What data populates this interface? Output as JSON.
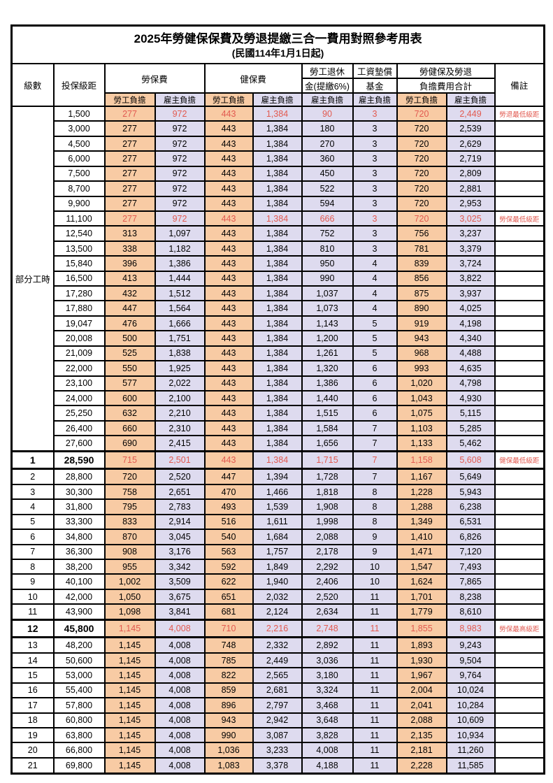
{
  "title": "2025年勞健保保費及勞退提繳三合一費用對照參考用表",
  "subtitle": "(民國114年1月1日起)",
  "colors": {
    "worker_bg": "#F8CBA4",
    "employer_bg": "#DEDBEF",
    "highlight_text": "#E25A50"
  },
  "columns": {
    "level": "級數",
    "bracket": "投保級距",
    "labor_insurance": "勞保費",
    "health_insurance": "健保費",
    "pension_line1": "勞工退休",
    "pension_line2": "金(提繳6%)",
    "wage_fund_line1": "工資墊償",
    "wage_fund_line2": "基金",
    "total_line1": "勞健保及勞退",
    "total_line2": "負擔費用合計",
    "remark": "備註",
    "worker": "勞工負擔",
    "employer": "雇主負擔"
  },
  "part_time_label": "部分工時",
  "part_time_rowspan": 23,
  "rows": [
    {
      "level": "",
      "bracket": "1,500",
      "li_w": "277",
      "li_e": "972",
      "hi_w": "443",
      "hi_e": "1,384",
      "pension": "90",
      "wage": "3",
      "tot_w": "720",
      "tot_e": "2,449",
      "remark": "勞退最低級距",
      "highlight": true,
      "thick": false,
      "em": false
    },
    {
      "level": "",
      "bracket": "3,000",
      "li_w": "277",
      "li_e": "972",
      "hi_w": "443",
      "hi_e": "1,384",
      "pension": "180",
      "wage": "3",
      "tot_w": "720",
      "tot_e": "2,539",
      "remark": "",
      "highlight": false,
      "thick": false,
      "em": false
    },
    {
      "level": "",
      "bracket": "4,500",
      "li_w": "277",
      "li_e": "972",
      "hi_w": "443",
      "hi_e": "1,384",
      "pension": "270",
      "wage": "3",
      "tot_w": "720",
      "tot_e": "2,629",
      "remark": "",
      "highlight": false,
      "thick": false,
      "em": false
    },
    {
      "level": "",
      "bracket": "6,000",
      "li_w": "277",
      "li_e": "972",
      "hi_w": "443",
      "hi_e": "1,384",
      "pension": "360",
      "wage": "3",
      "tot_w": "720",
      "tot_e": "2,719",
      "remark": "",
      "highlight": false,
      "thick": false,
      "em": false
    },
    {
      "level": "",
      "bracket": "7,500",
      "li_w": "277",
      "li_e": "972",
      "hi_w": "443",
      "hi_e": "1,384",
      "pension": "450",
      "wage": "3",
      "tot_w": "720",
      "tot_e": "2,809",
      "remark": "",
      "highlight": false,
      "thick": false,
      "em": false
    },
    {
      "level": "",
      "bracket": "8,700",
      "li_w": "277",
      "li_e": "972",
      "hi_w": "443",
      "hi_e": "1,384",
      "pension": "522",
      "wage": "3",
      "tot_w": "720",
      "tot_e": "2,881",
      "remark": "",
      "highlight": false,
      "thick": false,
      "em": false
    },
    {
      "level": "",
      "bracket": "9,900",
      "li_w": "277",
      "li_e": "972",
      "hi_w": "443",
      "hi_e": "1,384",
      "pension": "594",
      "wage": "3",
      "tot_w": "720",
      "tot_e": "2,953",
      "remark": "",
      "highlight": false,
      "thick": false,
      "em": false
    },
    {
      "level": "",
      "bracket": "11,100",
      "li_w": "277",
      "li_e": "972",
      "hi_w": "443",
      "hi_e": "1,384",
      "pension": "666",
      "wage": "3",
      "tot_w": "720",
      "tot_e": "3,025",
      "remark": "勞保最低級距",
      "highlight": true,
      "thick": false,
      "em": false
    },
    {
      "level": "",
      "bracket": "12,540",
      "li_w": "313",
      "li_e": "1,097",
      "hi_w": "443",
      "hi_e": "1,384",
      "pension": "752",
      "wage": "3",
      "tot_w": "756",
      "tot_e": "3,237",
      "remark": "",
      "highlight": false,
      "thick": false,
      "em": false
    },
    {
      "level": "",
      "bracket": "13,500",
      "li_w": "338",
      "li_e": "1,182",
      "hi_w": "443",
      "hi_e": "1,384",
      "pension": "810",
      "wage": "3",
      "tot_w": "781",
      "tot_e": "3,379",
      "remark": "",
      "highlight": false,
      "thick": false,
      "em": false
    },
    {
      "level": "",
      "bracket": "15,840",
      "li_w": "396",
      "li_e": "1,386",
      "hi_w": "443",
      "hi_e": "1,384",
      "pension": "950",
      "wage": "4",
      "tot_w": "839",
      "tot_e": "3,724",
      "remark": "",
      "highlight": false,
      "thick": false,
      "em": false
    },
    {
      "level": "",
      "bracket": "16,500",
      "li_w": "413",
      "li_e": "1,444",
      "hi_w": "443",
      "hi_e": "1,384",
      "pension": "990",
      "wage": "4",
      "tot_w": "856",
      "tot_e": "3,822",
      "remark": "",
      "highlight": false,
      "thick": false,
      "em": false
    },
    {
      "level": "",
      "bracket": "17,280",
      "li_w": "432",
      "li_e": "1,512",
      "hi_w": "443",
      "hi_e": "1,384",
      "pension": "1,037",
      "wage": "4",
      "tot_w": "875",
      "tot_e": "3,937",
      "remark": "",
      "highlight": false,
      "thick": false,
      "em": false
    },
    {
      "level": "",
      "bracket": "17,880",
      "li_w": "447",
      "li_e": "1,564",
      "hi_w": "443",
      "hi_e": "1,384",
      "pension": "1,073",
      "wage": "4",
      "tot_w": "890",
      "tot_e": "4,025",
      "remark": "",
      "highlight": false,
      "thick": false,
      "em": false
    },
    {
      "level": "",
      "bracket": "19,047",
      "li_w": "476",
      "li_e": "1,666",
      "hi_w": "443",
      "hi_e": "1,384",
      "pension": "1,143",
      "wage": "5",
      "tot_w": "919",
      "tot_e": "4,198",
      "remark": "",
      "highlight": false,
      "thick": false,
      "em": false
    },
    {
      "level": "",
      "bracket": "20,008",
      "li_w": "500",
      "li_e": "1,751",
      "hi_w": "443",
      "hi_e": "1,384",
      "pension": "1,200",
      "wage": "5",
      "tot_w": "943",
      "tot_e": "4,340",
      "remark": "",
      "highlight": false,
      "thick": false,
      "em": false
    },
    {
      "level": "",
      "bracket": "21,009",
      "li_w": "525",
      "li_e": "1,838",
      "hi_w": "443",
      "hi_e": "1,384",
      "pension": "1,261",
      "wage": "5",
      "tot_w": "968",
      "tot_e": "4,488",
      "remark": "",
      "highlight": false,
      "thick": false,
      "em": false
    },
    {
      "level": "",
      "bracket": "22,000",
      "li_w": "550",
      "li_e": "1,925",
      "hi_w": "443",
      "hi_e": "1,384",
      "pension": "1,320",
      "wage": "6",
      "tot_w": "993",
      "tot_e": "4,635",
      "remark": "",
      "highlight": false,
      "thick": false,
      "em": false
    },
    {
      "level": "",
      "bracket": "23,100",
      "li_w": "577",
      "li_e": "2,022",
      "hi_w": "443",
      "hi_e": "1,384",
      "pension": "1,386",
      "wage": "6",
      "tot_w": "1,020",
      "tot_e": "4,798",
      "remark": "",
      "highlight": false,
      "thick": false,
      "em": false
    },
    {
      "level": "",
      "bracket": "24,000",
      "li_w": "600",
      "li_e": "2,100",
      "hi_w": "443",
      "hi_e": "1,384",
      "pension": "1,440",
      "wage": "6",
      "tot_w": "1,043",
      "tot_e": "4,930",
      "remark": "",
      "highlight": false,
      "thick": false,
      "em": false
    },
    {
      "level": "",
      "bracket": "25,250",
      "li_w": "632",
      "li_e": "2,210",
      "hi_w": "443",
      "hi_e": "1,384",
      "pension": "1,515",
      "wage": "6",
      "tot_w": "1,075",
      "tot_e": "5,115",
      "remark": "",
      "highlight": false,
      "thick": false,
      "em": false
    },
    {
      "level": "",
      "bracket": "26,400",
      "li_w": "660",
      "li_e": "2,310",
      "hi_w": "443",
      "hi_e": "1,384",
      "pension": "1,584",
      "wage": "7",
      "tot_w": "1,103",
      "tot_e": "5,285",
      "remark": "",
      "highlight": false,
      "thick": false,
      "em": false
    },
    {
      "level": "",
      "bracket": "27,600",
      "li_w": "690",
      "li_e": "2,415",
      "hi_w": "443",
      "hi_e": "1,384",
      "pension": "1,656",
      "wage": "7",
      "tot_w": "1,133",
      "tot_e": "5,462",
      "remark": "",
      "highlight": false,
      "thick": false,
      "em": false
    },
    {
      "level": "1",
      "bracket": "28,590",
      "li_w": "715",
      "li_e": "2,501",
      "hi_w": "443",
      "hi_e": "1,384",
      "pension": "1,715",
      "wage": "7",
      "tot_w": "1,158",
      "tot_e": "5,608",
      "remark": "健保最低級距",
      "highlight": true,
      "thick": true,
      "em": true
    },
    {
      "level": "2",
      "bracket": "28,800",
      "li_w": "720",
      "li_e": "2,520",
      "hi_w": "447",
      "hi_e": "1,394",
      "pension": "1,728",
      "wage": "7",
      "tot_w": "1,167",
      "tot_e": "5,649",
      "remark": "",
      "highlight": false,
      "thick": false,
      "em": false
    },
    {
      "level": "3",
      "bracket": "30,300",
      "li_w": "758",
      "li_e": "2,651",
      "hi_w": "470",
      "hi_e": "1,466",
      "pension": "1,818",
      "wage": "8",
      "tot_w": "1,228",
      "tot_e": "5,943",
      "remark": "",
      "highlight": false,
      "thick": false,
      "em": false
    },
    {
      "level": "4",
      "bracket": "31,800",
      "li_w": "795",
      "li_e": "2,783",
      "hi_w": "493",
      "hi_e": "1,539",
      "pension": "1,908",
      "wage": "8",
      "tot_w": "1,288",
      "tot_e": "6,238",
      "remark": "",
      "highlight": false,
      "thick": false,
      "em": false
    },
    {
      "level": "5",
      "bracket": "33,300",
      "li_w": "833",
      "li_e": "2,914",
      "hi_w": "516",
      "hi_e": "1,611",
      "pension": "1,998",
      "wage": "8",
      "tot_w": "1,349",
      "tot_e": "6,531",
      "remark": "",
      "highlight": false,
      "thick": false,
      "em": false
    },
    {
      "level": "6",
      "bracket": "34,800",
      "li_w": "870",
      "li_e": "3,045",
      "hi_w": "540",
      "hi_e": "1,684",
      "pension": "2,088",
      "wage": "9",
      "tot_w": "1,410",
      "tot_e": "6,826",
      "remark": "",
      "highlight": false,
      "thick": false,
      "em": false
    },
    {
      "level": "7",
      "bracket": "36,300",
      "li_w": "908",
      "li_e": "3,176",
      "hi_w": "563",
      "hi_e": "1,757",
      "pension": "2,178",
      "wage": "9",
      "tot_w": "1,471",
      "tot_e": "7,120",
      "remark": "",
      "highlight": false,
      "thick": false,
      "em": false
    },
    {
      "level": "8",
      "bracket": "38,200",
      "li_w": "955",
      "li_e": "3,342",
      "hi_w": "592",
      "hi_e": "1,849",
      "pension": "2,292",
      "wage": "10",
      "tot_w": "1,547",
      "tot_e": "7,493",
      "remark": "",
      "highlight": false,
      "thick": false,
      "em": false
    },
    {
      "level": "9",
      "bracket": "40,100",
      "li_w": "1,002",
      "li_e": "3,509",
      "hi_w": "622",
      "hi_e": "1,940",
      "pension": "2,406",
      "wage": "10",
      "tot_w": "1,624",
      "tot_e": "7,865",
      "remark": "",
      "highlight": false,
      "thick": false,
      "em": false
    },
    {
      "level": "10",
      "bracket": "42,000",
      "li_w": "1,050",
      "li_e": "3,675",
      "hi_w": "651",
      "hi_e": "2,032",
      "pension": "2,520",
      "wage": "11",
      "tot_w": "1,701",
      "tot_e": "8,238",
      "remark": "",
      "highlight": false,
      "thick": false,
      "em": false
    },
    {
      "level": "11",
      "bracket": "43,900",
      "li_w": "1,098",
      "li_e": "3,841",
      "hi_w": "681",
      "hi_e": "2,124",
      "pension": "2,634",
      "wage": "11",
      "tot_w": "1,779",
      "tot_e": "8,610",
      "remark": "",
      "highlight": false,
      "thick": false,
      "em": false
    },
    {
      "level": "12",
      "bracket": "45,800",
      "li_w": "1,145",
      "li_e": "4,008",
      "hi_w": "710",
      "hi_e": "2,216",
      "pension": "2,748",
      "wage": "11",
      "tot_w": "1,855",
      "tot_e": "8,983",
      "remark": "勞保最高級距",
      "highlight": true,
      "thick": true,
      "em": true
    },
    {
      "level": "13",
      "bracket": "48,200",
      "li_w": "1,145",
      "li_e": "4,008",
      "hi_w": "748",
      "hi_e": "2,332",
      "pension": "2,892",
      "wage": "11",
      "tot_w": "1,893",
      "tot_e": "9,243",
      "remark": "",
      "highlight": false,
      "thick": false,
      "em": false
    },
    {
      "level": "14",
      "bracket": "50,600",
      "li_w": "1,145",
      "li_e": "4,008",
      "hi_w": "785",
      "hi_e": "2,449",
      "pension": "3,036",
      "wage": "11",
      "tot_w": "1,930",
      "tot_e": "9,504",
      "remark": "",
      "highlight": false,
      "thick": false,
      "em": false
    },
    {
      "level": "15",
      "bracket": "53,000",
      "li_w": "1,145",
      "li_e": "4,008",
      "hi_w": "822",
      "hi_e": "2,565",
      "pension": "3,180",
      "wage": "11",
      "tot_w": "1,967",
      "tot_e": "9,764",
      "remark": "",
      "highlight": false,
      "thick": false,
      "em": false
    },
    {
      "level": "16",
      "bracket": "55,400",
      "li_w": "1,145",
      "li_e": "4,008",
      "hi_w": "859",
      "hi_e": "2,681",
      "pension": "3,324",
      "wage": "11",
      "tot_w": "2,004",
      "tot_e": "10,024",
      "remark": "",
      "highlight": false,
      "thick": false,
      "em": false
    },
    {
      "level": "17",
      "bracket": "57,800",
      "li_w": "1,145",
      "li_e": "4,008",
      "hi_w": "896",
      "hi_e": "2,797",
      "pension": "3,468",
      "wage": "11",
      "tot_w": "2,041",
      "tot_e": "10,284",
      "remark": "",
      "highlight": false,
      "thick": false,
      "em": false
    },
    {
      "level": "18",
      "bracket": "60,800",
      "li_w": "1,145",
      "li_e": "4,008",
      "hi_w": "943",
      "hi_e": "2,942",
      "pension": "3,648",
      "wage": "11",
      "tot_w": "2,088",
      "tot_e": "10,609",
      "remark": "",
      "highlight": false,
      "thick": false,
      "em": false
    },
    {
      "level": "19",
      "bracket": "63,800",
      "li_w": "1,145",
      "li_e": "4,008",
      "hi_w": "990",
      "hi_e": "3,087",
      "pension": "3,828",
      "wage": "11",
      "tot_w": "2,135",
      "tot_e": "10,934",
      "remark": "",
      "highlight": false,
      "thick": false,
      "em": false
    },
    {
      "level": "20",
      "bracket": "66,800",
      "li_w": "1,145",
      "li_e": "4,008",
      "hi_w": "1,036",
      "hi_e": "3,233",
      "pension": "4,008",
      "wage": "11",
      "tot_w": "2,181",
      "tot_e": "11,260",
      "remark": "",
      "highlight": false,
      "thick": false,
      "em": false
    },
    {
      "level": "21",
      "bracket": "69,800",
      "li_w": "1,145",
      "li_e": "4,008",
      "hi_w": "1,083",
      "hi_e": "3,378",
      "pension": "4,188",
      "wage": "11",
      "tot_w": "2,228",
      "tot_e": "11,585",
      "remark": "",
      "highlight": false,
      "thick": false,
      "em": false
    }
  ]
}
